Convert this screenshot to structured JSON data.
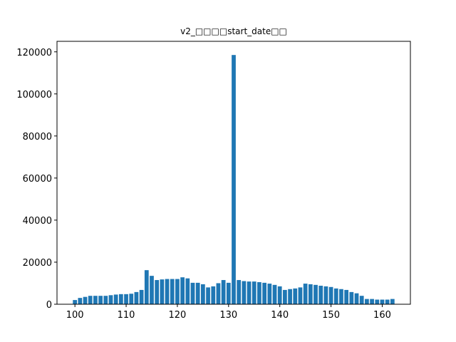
{
  "chart_data": {
    "type": "bar",
    "title": "v2_□□□□start_date□□",
    "xlabel": "",
    "ylabel": "",
    "bar_color": "#1f77b4",
    "xlim": [
      96.5,
      165.5
    ],
    "ylim": [
      0,
      125000
    ],
    "grid": false,
    "x_ticks": [
      100,
      110,
      120,
      130,
      140,
      150,
      160
    ],
    "y_ticks": [
      0,
      20000,
      40000,
      60000,
      80000,
      100000,
      120000
    ],
    "x": [
      100,
      101,
      102,
      103,
      104,
      105,
      106,
      107,
      108,
      109,
      110,
      111,
      112,
      113,
      114,
      115,
      116,
      117,
      118,
      119,
      120,
      121,
      122,
      123,
      124,
      125,
      126,
      127,
      128,
      129,
      130,
      131,
      132,
      133,
      134,
      135,
      136,
      137,
      138,
      139,
      140,
      141,
      142,
      143,
      144,
      145,
      146,
      147,
      148,
      149,
      150,
      151,
      152,
      153,
      154,
      155,
      156,
      157,
      158,
      159,
      160,
      161,
      162
    ],
    "values": [
      2000,
      3000,
      3500,
      4000,
      4000,
      4000,
      4000,
      4300,
      4600,
      4800,
      4800,
      5000,
      5800,
      6800,
      16200,
      13500,
      11500,
      11800,
      12000,
      12000,
      12000,
      12800,
      12300,
      10200,
      10200,
      9500,
      8000,
      8500,
      10000,
      11500,
      10200,
      118500,
      11500,
      11000,
      10800,
      10800,
      10500,
      10200,
      9800,
      9200,
      8500,
      6800,
      7200,
      7500,
      8000,
      9800,
      9500,
      9200,
      8800,
      8500,
      8200,
      7500,
      7200,
      6800,
      5800,
      5200,
      4000,
      2500,
      2500,
      2200,
      2200,
      2200,
      2500
    ]
  }
}
